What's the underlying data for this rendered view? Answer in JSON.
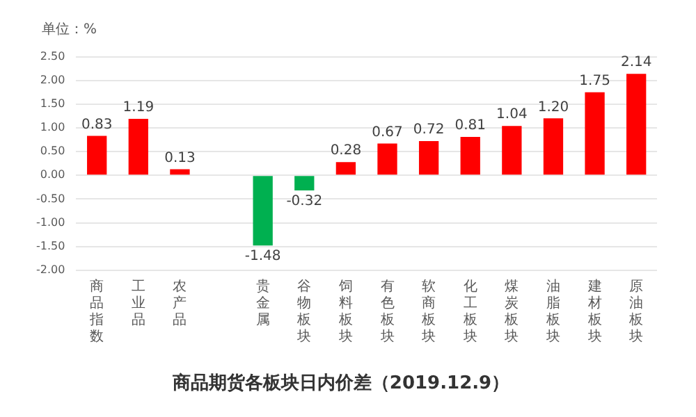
{
  "chart_data": {
    "type": "bar",
    "title": "商品期货各板块日内价差（2019.12.9）",
    "ylabel": "单位：%",
    "categories": [
      "商品指数",
      "工业品",
      "农产品",
      null,
      "贵金属",
      "谷物板块",
      "饲料板块",
      "有色板块",
      "软商板块",
      "化工板块",
      "煤炭板块",
      "油脂板块",
      "建材板块",
      "原油板块"
    ],
    "values": [
      0.83,
      1.19,
      0.13,
      null,
      -1.48,
      -0.32,
      0.28,
      0.67,
      0.72,
      0.81,
      1.04,
      1.2,
      1.75,
      2.14
    ],
    "colors": [
      "#ff0000",
      "#ff0000",
      "#ff0000",
      "#ff0000",
      "#00b050",
      "#00b050",
      "#ff0000",
      "#ff0000",
      "#ff0000",
      "#ff0000",
      "#ff0000",
      "#ff0000",
      "#ff0000",
      "#ff0000"
    ],
    "value_labels": [
      "0.83",
      "1.19",
      "0.13",
      null,
      "-1.48",
      "-0.32",
      "0.28",
      "0.67",
      "0.72",
      "0.81",
      "1.04",
      "1.20",
      "1.75",
      "2.14"
    ],
    "ylim": [
      -2,
      2.5
    ],
    "yticks": [
      {
        "value": -2,
        "label": "-2.00"
      },
      {
        "value": -1.5,
        "label": "-1.50"
      },
      {
        "value": -1,
        "label": "-1.00"
      },
      {
        "value": -0.5,
        "label": "-0.50"
      },
      {
        "value": 0,
        "label": "0.00"
      },
      {
        "value": 0.5,
        "label": "0.50"
      },
      {
        "value": 1,
        "label": "1.00"
      },
      {
        "value": 1.5,
        "label": "1.50"
      },
      {
        "value": 2,
        "label": "2.00"
      },
      {
        "value": 2.5,
        "label": "2.50"
      }
    ],
    "grid": "y",
    "legend": false
  }
}
